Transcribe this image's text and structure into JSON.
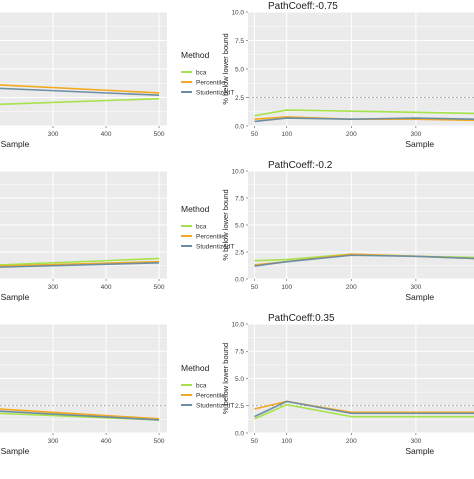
{
  "legend": {
    "title": "Method",
    "entries": [
      "bca",
      "Percentile",
      "StudentizedT"
    ]
  },
  "colors": {
    "bca": "#a6e34a",
    "Percentile": "#f2a921",
    "StudentizedT": "#6c8ea3",
    "panel_bg": "#ebebeb",
    "grid": "#ffffff",
    "reference_line": "#9a9a9a"
  },
  "chart_data": [
    {
      "type": "line",
      "title": "",
      "xlabel": "Sample",
      "ylabel": "",
      "xlim": [
        200,
        515
      ],
      "ylim": [
        0,
        10
      ],
      "xticks": [
        300,
        400,
        500
      ],
      "yticks": [],
      "reference_y": null,
      "grid": true,
      "series": [
        {
          "name": "bca",
          "x": [
            200,
            500
          ],
          "y": [
            1.9,
            2.4
          ]
        },
        {
          "name": "Percentile",
          "x": [
            200,
            500
          ],
          "y": [
            3.6,
            2.9
          ]
        },
        {
          "name": "StudentizedT",
          "x": [
            200,
            500
          ],
          "y": [
            3.3,
            2.7
          ]
        }
      ]
    },
    {
      "type": "line",
      "title": "PathCoeff:-0.75",
      "xlabel": "Sample",
      "ylabel": "% below lower bound",
      "xlim": [
        40,
        390
      ],
      "ylim": [
        0,
        10
      ],
      "xticks": [
        50,
        100,
        200,
        300
      ],
      "yticks": [
        0.0,
        2.5,
        5.0,
        7.5,
        10.0
      ],
      "reference_y": 2.5,
      "grid": true,
      "series": [
        {
          "name": "bca",
          "x": [
            50,
            100,
            200,
            300,
            390
          ],
          "y": [
            0.9,
            1.4,
            1.3,
            1.2,
            1.1
          ]
        },
        {
          "name": "Percentile",
          "x": [
            50,
            100,
            200,
            300,
            390
          ],
          "y": [
            0.6,
            0.8,
            0.6,
            0.6,
            0.5
          ]
        },
        {
          "name": "StudentizedT",
          "x": [
            50,
            100,
            200,
            300,
            390
          ],
          "y": [
            0.4,
            0.7,
            0.6,
            0.7,
            0.6
          ]
        }
      ]
    },
    {
      "type": "line",
      "title": "",
      "xlabel": "Sample",
      "ylabel": "",
      "xlim": [
        200,
        515
      ],
      "ylim": [
        0,
        10
      ],
      "xticks": [
        300,
        400,
        500
      ],
      "yticks": [],
      "reference_y": null,
      "grid": true,
      "series": [
        {
          "name": "bca",
          "x": [
            200,
            500
          ],
          "y": [
            1.3,
            1.9
          ]
        },
        {
          "name": "Percentile",
          "x": [
            200,
            500
          ],
          "y": [
            1.2,
            1.6
          ]
        },
        {
          "name": "StudentizedT",
          "x": [
            200,
            500
          ],
          "y": [
            1.1,
            1.5
          ]
        }
      ]
    },
    {
      "type": "line",
      "title": "PathCoeff:-0.2",
      "xlabel": "Sample",
      "ylabel": "% below lower bound",
      "xlim": [
        40,
        390
      ],
      "ylim": [
        0,
        10
      ],
      "xticks": [
        50,
        100,
        200,
        300
      ],
      "yticks": [
        0.0,
        2.5,
        5.0,
        7.5,
        10.0
      ],
      "reference_y": null,
      "grid": true,
      "series": [
        {
          "name": "bca",
          "x": [
            50,
            100,
            200,
            300,
            390
          ],
          "y": [
            1.7,
            1.8,
            2.3,
            2.1,
            2.0
          ]
        },
        {
          "name": "Percentile",
          "x": [
            50,
            100,
            200,
            300,
            390
          ],
          "y": [
            1.3,
            1.6,
            2.3,
            2.1,
            1.9
          ]
        },
        {
          "name": "StudentizedT",
          "x": [
            50,
            100,
            200,
            300,
            390
          ],
          "y": [
            1.2,
            1.6,
            2.2,
            2.1,
            1.9
          ]
        }
      ]
    },
    {
      "type": "line",
      "title": "",
      "xlabel": "Sample",
      "ylabel": "",
      "xlim": [
        200,
        515
      ],
      "ylim": [
        0,
        10
      ],
      "xticks": [
        300,
        400,
        500
      ],
      "yticks": [],
      "reference_y": 2.5,
      "grid": true,
      "series": [
        {
          "name": "bca",
          "x": [
            200,
            500
          ],
          "y": [
            1.8,
            1.2
          ]
        },
        {
          "name": "Percentile",
          "x": [
            200,
            500
          ],
          "y": [
            2.2,
            1.3
          ]
        },
        {
          "name": "StudentizedT",
          "x": [
            200,
            500
          ],
          "y": [
            2.0,
            1.2
          ]
        }
      ]
    },
    {
      "type": "line",
      "title": "PathCoeff:0.35",
      "xlabel": "Sample",
      "ylabel": "% below lower bound",
      "xlim": [
        40,
        390
      ],
      "ylim": [
        0,
        10
      ],
      "xticks": [
        50,
        100,
        200,
        300
      ],
      "yticks": [
        0.0,
        2.5,
        5.0,
        7.5,
        10.0
      ],
      "reference_y": 2.5,
      "grid": true,
      "series": [
        {
          "name": "bca",
          "x": [
            50,
            100,
            200,
            300,
            390
          ],
          "y": [
            1.3,
            2.6,
            1.5,
            1.5,
            1.5
          ]
        },
        {
          "name": "Percentile",
          "x": [
            50,
            100,
            200,
            300,
            390
          ],
          "y": [
            2.2,
            2.9,
            1.9,
            1.9,
            1.9
          ]
        },
        {
          "name": "StudentizedT",
          "x": [
            50,
            100,
            200,
            300,
            390
          ],
          "y": [
            1.5,
            2.9,
            1.8,
            1.8,
            1.8
          ]
        }
      ]
    }
  ]
}
